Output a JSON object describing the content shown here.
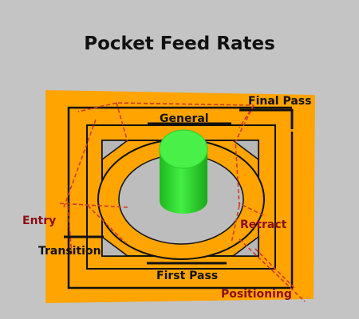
{
  "title": "Pocket Feed Rates",
  "labels": {
    "general": "General",
    "final_pass": "Final Pass",
    "entry": "Entry",
    "retract": "Retract",
    "transition": "Transition",
    "first_pass": "First Pass",
    "positioning": "Positioning"
  },
  "colors": {
    "background": "#c4c4c4",
    "plate": "#ffa400",
    "tool": "#33dd33",
    "black_label": "#111111",
    "red_label": "#8a0f16",
    "toolpath_dashed": "#d23a2a"
  },
  "icons": {
    "tool": "cylindrical-end-mill-icon"
  }
}
